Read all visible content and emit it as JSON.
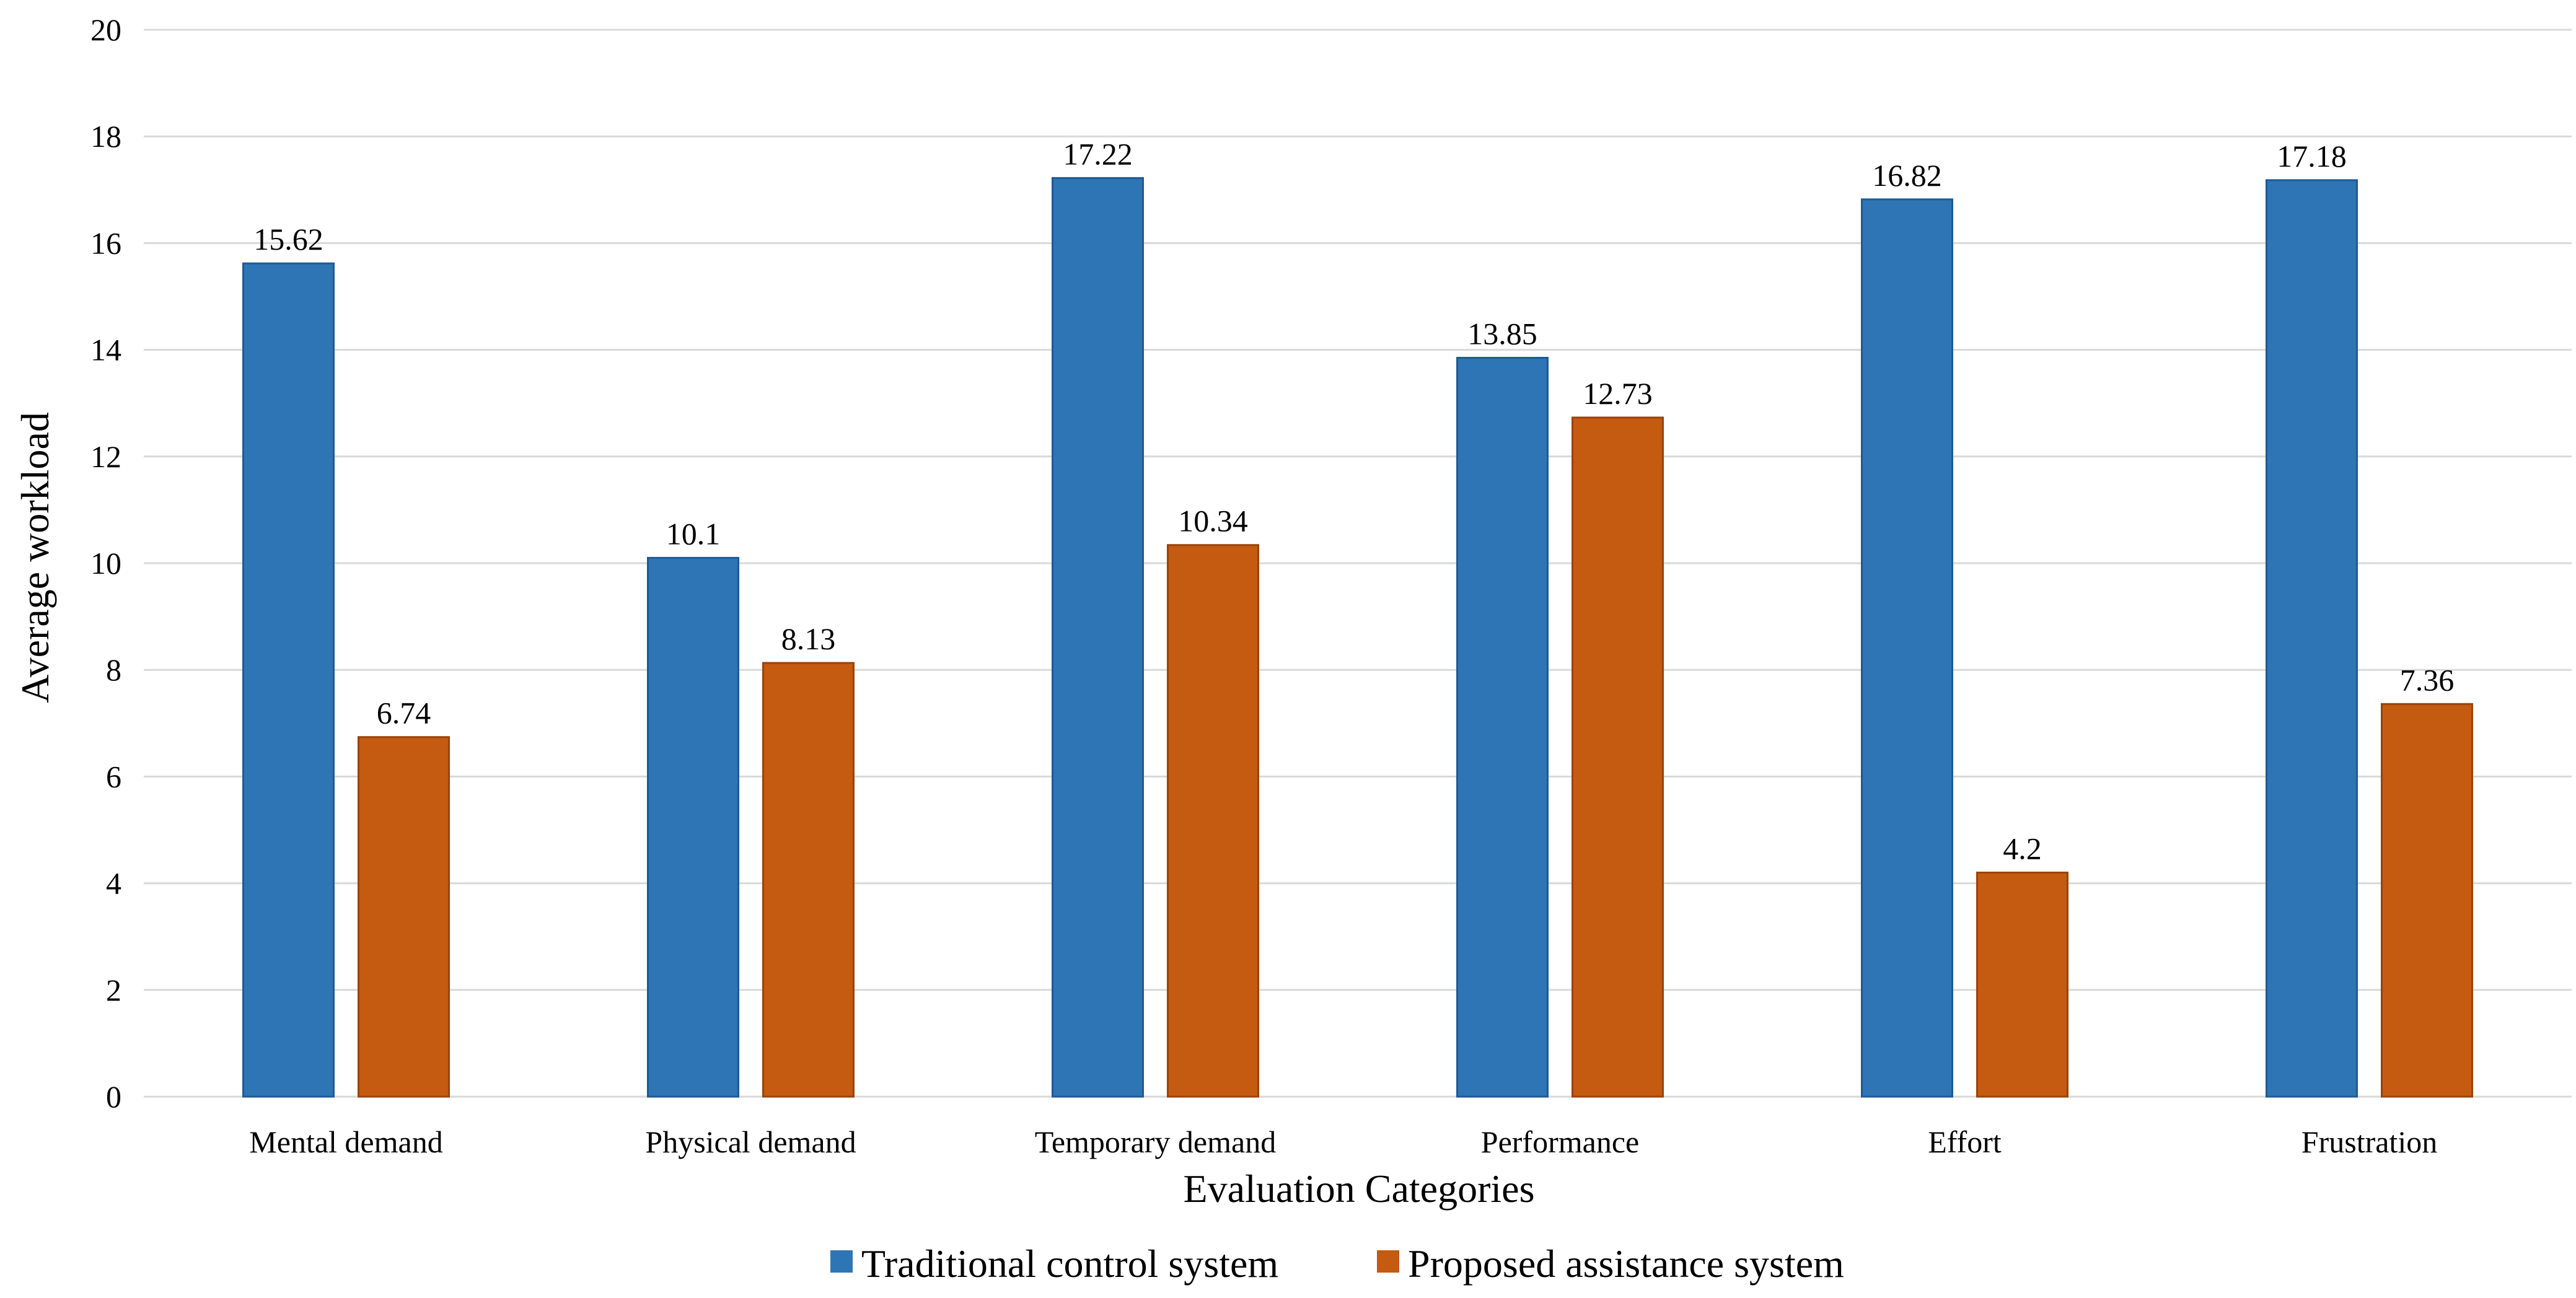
{
  "chart_data": {
    "type": "bar",
    "title": "",
    "xlabel": "Evaluation Categories",
    "ylabel": "Average workload",
    "ylim": [
      0,
      20
    ],
    "yticks": [
      0,
      2,
      4,
      6,
      8,
      10,
      12,
      14,
      16,
      18,
      20
    ],
    "grid": true,
    "legend_position": "bottom",
    "categories": [
      "Mental demand",
      "Physical demand",
      "Temporary demand",
      "Performance",
      "Effort",
      "Frustration"
    ],
    "series": [
      {
        "name": "Traditional control system",
        "color": "#2e75b6",
        "values": [
          15.62,
          10.1,
          17.22,
          13.85,
          16.82,
          17.18
        ],
        "labels": [
          "15.62",
          "10.1",
          "17.22",
          "13.85",
          "16.82",
          "17.18"
        ]
      },
      {
        "name": "Proposed assistance system",
        "color": "#c55a11",
        "values": [
          6.74,
          8.13,
          10.34,
          12.73,
          4.2,
          7.36
        ],
        "labels": [
          "6.74",
          "8.13",
          "10.34",
          "12.73",
          "4.2",
          "7.36"
        ]
      }
    ]
  }
}
